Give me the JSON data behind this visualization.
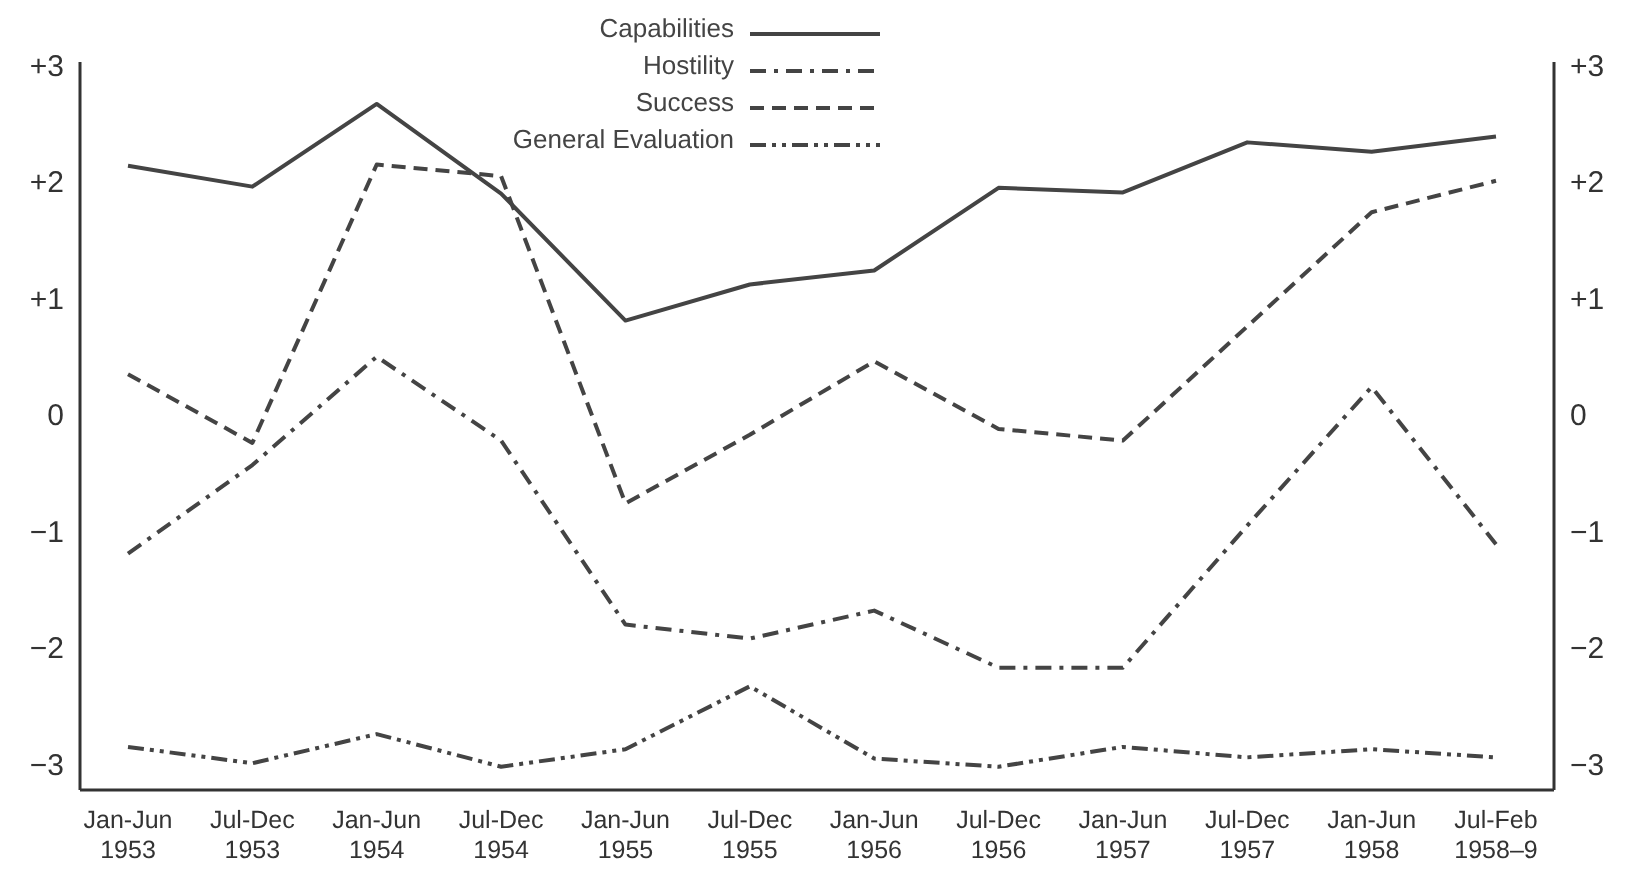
{
  "chart_data": {
    "type": "line",
    "categories": [
      "Jan-Jun\n1953",
      "Jul-Dec\n1953",
      "Jan-Jun\n1954",
      "Jul-Dec\n1954",
      "Jan-Jun\n1955",
      "Jul-Dec\n1955",
      "Jan-Jun\n1956",
      "Jul-Dec\n1956",
      "Jan-Jun\n1957",
      "Jul-Dec\n1957",
      "Jan-Jun\n1958",
      "Jul-Feb\n1958–9"
    ],
    "series": [
      {
        "name": "Capabilities",
        "color": "#444444",
        "line_style": "solid",
        "values": [
          2.16,
          1.98,
          2.69,
          1.92,
          0.83,
          1.14,
          1.26,
          1.97,
          1.93,
          2.36,
          2.28,
          2.41
        ]
      },
      {
        "name": "Hostility",
        "color": "#444444",
        "line_style": "dashdot",
        "values": [
          -1.17,
          -0.41,
          0.52,
          -0.2,
          -1.78,
          -1.9,
          -1.66,
          -2.15,
          -2.15,
          -0.93,
          0.26,
          -1.09
        ]
      },
      {
        "name": "Success",
        "color": "#444444",
        "line_style": "dashed",
        "values": [
          0.37,
          -0.22,
          2.17,
          2.07,
          -0.74,
          -0.15,
          0.48,
          -0.1,
          -0.2,
          0.78,
          1.76,
          2.03
        ]
      },
      {
        "name": "General Evaluation",
        "color": "#444444",
        "line_style": "dashdotdot",
        "values": [
          -2.83,
          -2.97,
          -2.72,
          -3.0,
          -2.85,
          -2.31,
          -2.93,
          -3.0,
          -2.83,
          -2.92,
          -2.85,
          -2.92
        ]
      }
    ],
    "ylim": [
      -3.2,
      3.05
    ],
    "yticks": [
      {
        "value": 3,
        "label": "+3"
      },
      {
        "value": 2,
        "label": "+2"
      },
      {
        "value": 1,
        "label": "+1"
      },
      0,
      {
        "value": -1,
        "label": "−1"
      },
      {
        "value": -2,
        "label": "−2"
      },
      {
        "value": -3,
        "label": "−3"
      }
    ],
    "y2lim": [
      -3.2,
      3.05
    ],
    "y2ticks": [
      {
        "value": 3,
        "label": "+3"
      },
      {
        "value": 2,
        "label": "+2"
      },
      {
        "value": 1,
        "label": "+1"
      },
      0,
      {
        "value": -1,
        "label": "−1"
      },
      {
        "value": -2,
        "label": "−2"
      },
      {
        "value": -3,
        "label": "−3"
      }
    ],
    "grid": false,
    "legend": "top",
    "marker": "none"
  }
}
